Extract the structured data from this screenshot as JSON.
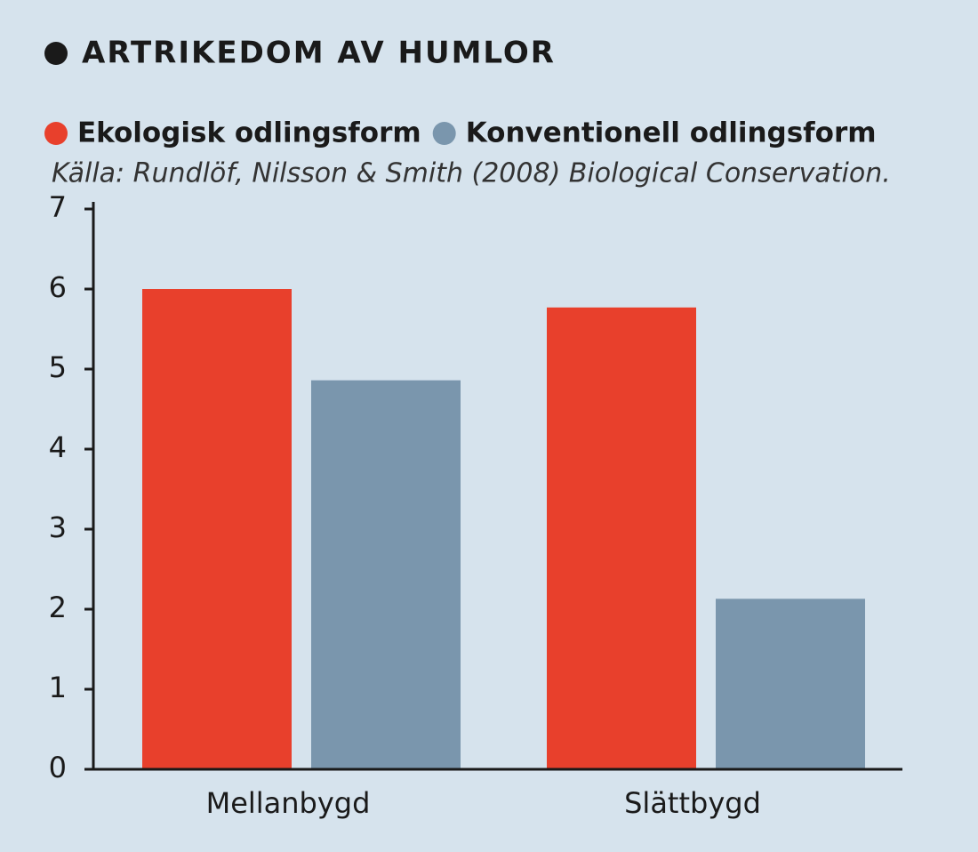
{
  "chart_data": {
    "type": "bar",
    "title": "ARTRIKEDOM AV HUMLOR",
    "source": "Källa: Rundlöf, Nilsson & Smith (2008) Biological Conservation.",
    "categories": [
      "Mellanbygd",
      "Slättbygd"
    ],
    "series": [
      {
        "name": "Ekologisk odlingsform",
        "color": "#e8402c",
        "values": [
          6.0,
          5.77
        ]
      },
      {
        "name": "Konventionell odlingsform",
        "color": "#7a96ad",
        "values": [
          4.86,
          2.13
        ]
      }
    ],
    "ylim": [
      0,
      7
    ],
    "yticks": [
      0,
      1,
      2,
      3,
      4,
      5,
      6,
      7
    ],
    "grid": false
  }
}
